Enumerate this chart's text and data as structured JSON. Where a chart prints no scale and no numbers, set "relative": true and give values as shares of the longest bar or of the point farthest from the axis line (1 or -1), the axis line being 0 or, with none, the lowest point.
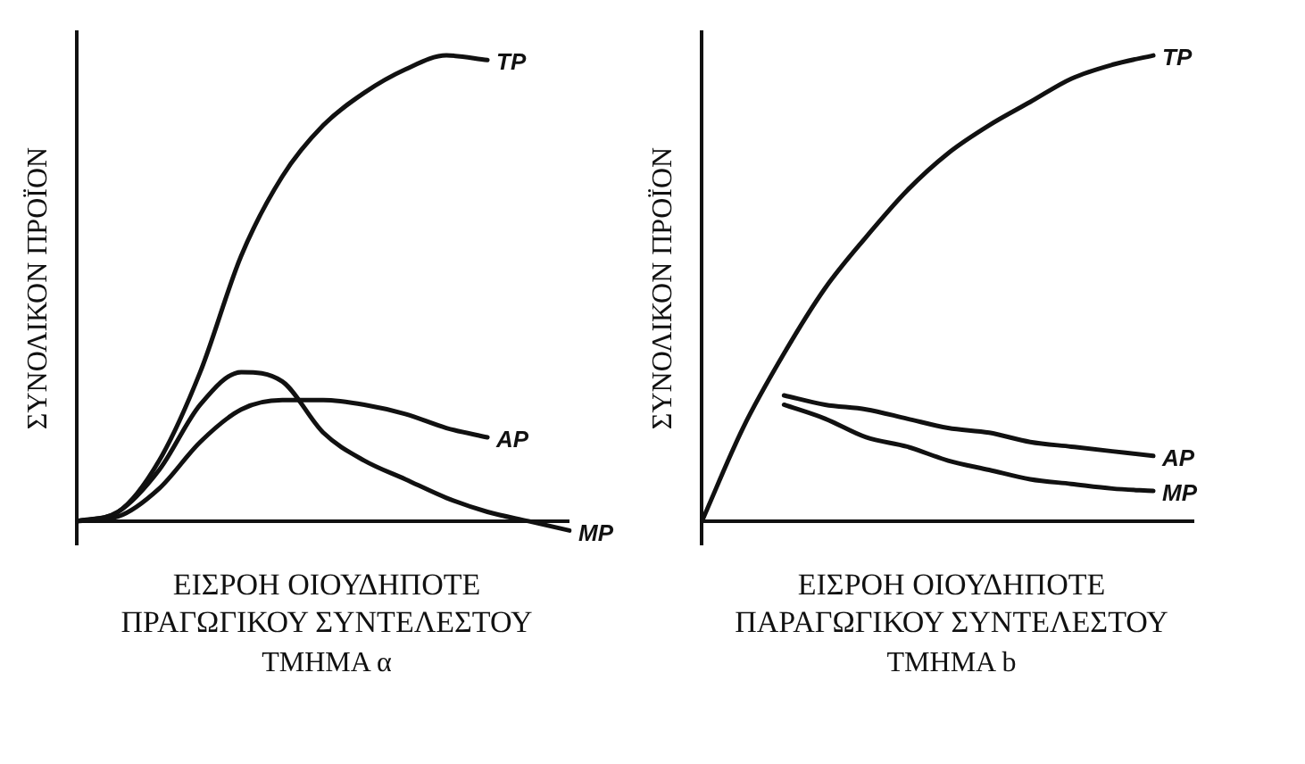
{
  "chart_data": [
    {
      "type": "line",
      "relative": true,
      "ylabel": "ΣΥΝΟΛΙΚΟΝ ΠΡΟΪΟΝ",
      "xlabel": "ΕΙΣΡΟΗ ΟΙΟΥΔΗΠΟΤΕ ΠΡΑΓΩΓΙΚΟΥ ΣΥΝΤΕΛΕΣΤΟΥ",
      "annotations": [
        "ΤΜΗΜΑ α"
      ],
      "categories": [
        null,
        null,
        null,
        null,
        null,
        null,
        null,
        null,
        null,
        null,
        null,
        null,
        null
      ],
      "series": [
        {
          "name": "TP",
          "color": "#111111",
          "values": [
            0,
            0.02,
            0.13,
            0.32,
            0.57,
            0.74,
            0.85,
            0.92,
            0.97,
            1,
            0.99,
            null,
            null
          ]
        },
        {
          "name": "AP",
          "color": "#111111",
          "values": [
            0,
            0.01,
            0.07,
            0.17,
            0.24,
            0.26,
            0.26,
            0.25,
            0.23,
            0.2,
            0.18,
            null,
            null
          ]
        },
        {
          "name": "MP",
          "color": "#111111",
          "values": [
            0,
            0.02,
            0.11,
            0.25,
            0.32,
            0.3,
            0.19,
            0.13,
            0.09,
            0.05,
            0.02,
            0,
            -0.02
          ]
        }
      ]
    },
    {
      "type": "line",
      "relative": true,
      "ylabel": "ΣΥΝΟΛΙΚΟΝ ΠΡΟΪΟΝ",
      "xlabel": "ΕΙΣΡΟΗ ΟΙΟΥΔΗΠΟΤΕ ΠΑΡΑΓΩΓΙΚΟΥ ΣΥΝΤΕΛΕΣΤΟΥ",
      "annotations": [
        "ΤΜΗΜΑ b"
      ],
      "categories": [
        null,
        null,
        null,
        null,
        null,
        null,
        null,
        null,
        null,
        null,
        null,
        null,
        null
      ],
      "series": [
        {
          "name": "TP",
          "color": "#111111",
          "values": [
            0,
            0.2,
            0.36,
            0.5,
            0.61,
            0.71,
            0.79,
            0.85,
            0.9,
            0.95,
            0.98,
            1,
            null
          ]
        },
        {
          "name": "AP",
          "color": "#111111",
          "values": [
            null,
            null,
            0.27,
            0.25,
            0.24,
            0.22,
            0.2,
            0.19,
            0.17,
            0.16,
            0.15,
            0.14,
            null
          ]
        },
        {
          "name": "MP",
          "color": "#111111",
          "values": [
            null,
            null,
            0.25,
            0.22,
            0.18,
            0.16,
            0.13,
            0.11,
            0.09,
            0.08,
            0.07,
            0.065,
            null
          ]
        }
      ]
    }
  ]
}
